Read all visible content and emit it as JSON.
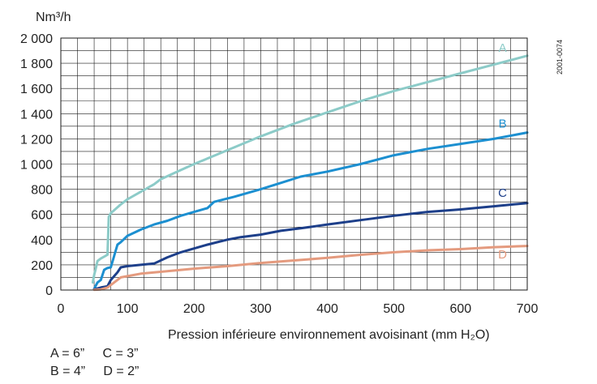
{
  "chart_data": {
    "type": "line",
    "title": "",
    "ylabel": "Nm³/h",
    "xlabel": "Pression inférieure environnement avoisinant (mm H₂O)",
    "reference_code": "2001-0074",
    "xlim": [
      0,
      700
    ],
    "ylim": [
      0,
      2000
    ],
    "x_ticks": [
      0,
      100,
      200,
      300,
      400,
      500,
      600,
      700
    ],
    "y_ticks": [
      0,
      200,
      400,
      600,
      800,
      1000,
      1200,
      1400,
      1600,
      1800,
      2000
    ],
    "x_tick_labels": [
      "0",
      "100",
      "200",
      "300",
      "400",
      "500",
      "600",
      "700"
    ],
    "y_tick_labels": [
      "0",
      "200",
      "400",
      "600",
      "800",
      "1 000",
      "1 200",
      "1 400",
      "1 600",
      "1 800",
      "2 000"
    ],
    "grid": true,
    "series": [
      {
        "name": "A",
        "color": "#8ccbc8",
        "points": [
          [
            48,
            60
          ],
          [
            50,
            120
          ],
          [
            52,
            160
          ],
          [
            55,
            230
          ],
          [
            60,
            250
          ],
          [
            65,
            265
          ],
          [
            70,
            280
          ],
          [
            72,
            580
          ],
          [
            75,
            610
          ],
          [
            90,
            680
          ],
          [
            100,
            720
          ],
          [
            120,
            780
          ],
          [
            140,
            840
          ],
          [
            150,
            880
          ],
          [
            175,
            940
          ],
          [
            200,
            1000
          ],
          [
            250,
            1110
          ],
          [
            300,
            1220
          ],
          [
            350,
            1320
          ],
          [
            400,
            1410
          ],
          [
            450,
            1500
          ],
          [
            500,
            1580
          ],
          [
            550,
            1650
          ],
          [
            600,
            1720
          ],
          [
            650,
            1790
          ],
          [
            700,
            1860
          ]
        ]
      },
      {
        "name": "B",
        "color": "#1c8fd0",
        "points": [
          [
            50,
            10
          ],
          [
            55,
            60
          ],
          [
            60,
            80
          ],
          [
            65,
            160
          ],
          [
            70,
            175
          ],
          [
            75,
            180
          ],
          [
            85,
            360
          ],
          [
            90,
            380
          ],
          [
            100,
            430
          ],
          [
            120,
            480
          ],
          [
            140,
            520
          ],
          [
            160,
            550
          ],
          [
            180,
            590
          ],
          [
            200,
            620
          ],
          [
            220,
            650
          ],
          [
            230,
            700
          ],
          [
            260,
            740
          ],
          [
            300,
            800
          ],
          [
            330,
            850
          ],
          [
            360,
            900
          ],
          [
            400,
            940
          ],
          [
            450,
            1000
          ],
          [
            500,
            1070
          ],
          [
            550,
            1120
          ],
          [
            600,
            1160
          ],
          [
            650,
            1200
          ],
          [
            700,
            1250
          ]
        ]
      },
      {
        "name": "C",
        "color": "#1d3f8a",
        "points": [
          [
            50,
            5
          ],
          [
            60,
            20
          ],
          [
            70,
            30
          ],
          [
            75,
            80
          ],
          [
            85,
            140
          ],
          [
            90,
            180
          ],
          [
            100,
            190
          ],
          [
            140,
            210
          ],
          [
            160,
            260
          ],
          [
            180,
            300
          ],
          [
            200,
            330
          ],
          [
            220,
            360
          ],
          [
            250,
            400
          ],
          [
            270,
            420
          ],
          [
            300,
            440
          ],
          [
            330,
            470
          ],
          [
            360,
            490
          ],
          [
            400,
            520
          ],
          [
            450,
            555
          ],
          [
            500,
            590
          ],
          [
            550,
            620
          ],
          [
            600,
            640
          ],
          [
            650,
            665
          ],
          [
            700,
            690
          ]
        ]
      },
      {
        "name": "D",
        "color": "#e49a7e",
        "points": [
          [
            50,
            2
          ],
          [
            60,
            5
          ],
          [
            70,
            20
          ],
          [
            80,
            60
          ],
          [
            90,
            100
          ],
          [
            100,
            110
          ],
          [
            120,
            130
          ],
          [
            150,
            145
          ],
          [
            200,
            170
          ],
          [
            250,
            190
          ],
          [
            300,
            215
          ],
          [
            350,
            235
          ],
          [
            400,
            255
          ],
          [
            450,
            280
          ],
          [
            500,
            300
          ],
          [
            550,
            315
          ],
          [
            600,
            325
          ],
          [
            650,
            340
          ],
          [
            700,
            350
          ]
        ]
      }
    ],
    "series_labels": [
      {
        "name": "A",
        "text": "A",
        "x": 663,
        "y": 1890
      },
      {
        "name": "B",
        "text": "B",
        "x": 663,
        "y": 1290
      },
      {
        "name": "C",
        "text": "C",
        "x": 663,
        "y": 740
      },
      {
        "name": "D",
        "text": "D",
        "x": 663,
        "y": 250
      }
    ]
  },
  "legend": {
    "line1": "A = 6”     C = 3”",
    "line2": "B = 4”     D = 2”"
  }
}
